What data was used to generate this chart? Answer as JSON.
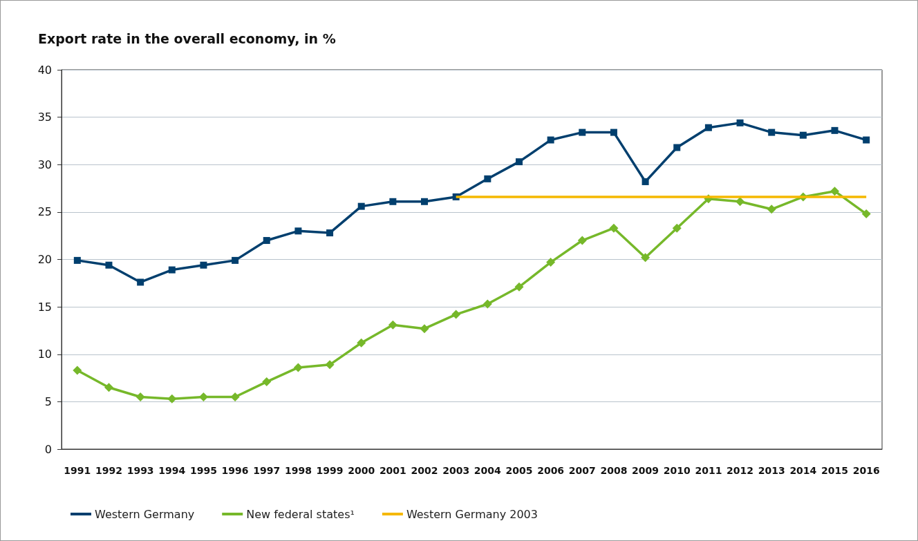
{
  "chart_data": {
    "type": "line",
    "title": "Export rate in the overall economy, in %",
    "categories": [
      "1991",
      "1992",
      "1993",
      "1994",
      "1995",
      "1996",
      "1997",
      "1998",
      "1999",
      "2000",
      "2001",
      "2002",
      "2003",
      "2004",
      "2005",
      "2006",
      "2007",
      "2008",
      "2009",
      "2010",
      "2011",
      "2012",
      "2013",
      "2014",
      "2015",
      "2016"
    ],
    "series": [
      {
        "name": "Western Germany",
        "color": "#003f6e",
        "marker": "square",
        "values": [
          19.9,
          19.4,
          17.6,
          18.9,
          19.4,
          19.9,
          22.0,
          23.0,
          22.8,
          25.6,
          26.1,
          26.1,
          26.6,
          28.5,
          30.3,
          32.6,
          33.4,
          33.4,
          28.2,
          31.8,
          33.9,
          34.4,
          33.4,
          33.1,
          33.6,
          32.6
        ]
      },
      {
        "name": "New federal states¹",
        "color": "#76b82a",
        "marker": "diamond",
        "values": [
          8.3,
          6.5,
          5.5,
          5.3,
          5.5,
          5.5,
          7.1,
          8.6,
          8.9,
          11.2,
          13.1,
          12.7,
          14.2,
          15.3,
          17.1,
          19.7,
          22.0,
          23.3,
          20.2,
          23.3,
          26.4,
          26.1,
          25.3,
          26.6,
          27.2,
          24.8
        ]
      },
      {
        "name": "Western Germany 2003",
        "color": "#f5b800",
        "marker": "none",
        "values": [
          null,
          null,
          null,
          null,
          null,
          null,
          null,
          null,
          null,
          null,
          null,
          null,
          26.6,
          26.6,
          26.6,
          26.6,
          26.6,
          26.6,
          26.6,
          26.6,
          26.6,
          26.6,
          26.6,
          26.6,
          26.6,
          26.6
        ]
      }
    ],
    "ylim": [
      0,
      40
    ],
    "yticks": [
      0,
      5,
      10,
      15,
      20,
      25,
      30,
      35,
      40
    ],
    "grid": "y",
    "legend": "bottom left"
  }
}
